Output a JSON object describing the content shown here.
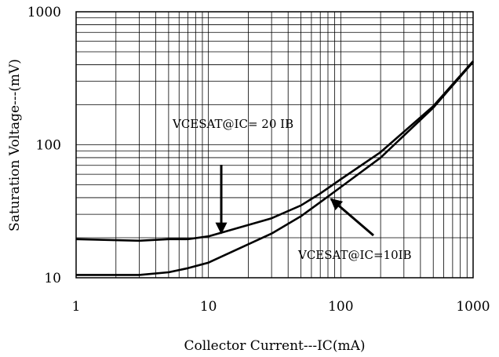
{
  "chart_data": {
    "type": "line",
    "title": "",
    "xlabel": "Collector Current---IC(mA)",
    "ylabel": "Saturation Voltage---(mV)",
    "xscale": "log",
    "yscale": "log",
    "xlim": [
      1,
      1000
    ],
    "ylim": [
      10,
      1000
    ],
    "grid": true,
    "x_ticks": [
      "1",
      "10",
      "100",
      "1000"
    ],
    "y_ticks": [
      "10",
      "100",
      "1000"
    ],
    "series": [
      {
        "name": "VCESAT@IC= 20 IB",
        "x": [
          1,
          3,
          5,
          7,
          10,
          30,
          50,
          70,
          100,
          200,
          500,
          1000
        ],
        "y": [
          19.5,
          19,
          19.5,
          19.5,
          20.5,
          28,
          35,
          43,
          55,
          88,
          195,
          425
        ]
      },
      {
        "name": "VCESAT@IC=10IB",
        "x": [
          1,
          3,
          5,
          7,
          10,
          30,
          50,
          70,
          100,
          200,
          500,
          1000
        ],
        "y": [
          10.5,
          10.5,
          11,
          11.8,
          13,
          21.5,
          29,
          37,
          48,
          80,
          190,
          420
        ]
      }
    ],
    "annotations": [
      {
        "text": "VCESAT@IC= 20 IB",
        "series": 0,
        "arrow_to": [
          12.5,
          20.5
        ]
      },
      {
        "text": "VCESAT@IC=10IB",
        "series": 1,
        "arrow_to": [
          80,
          38
        ]
      }
    ]
  }
}
